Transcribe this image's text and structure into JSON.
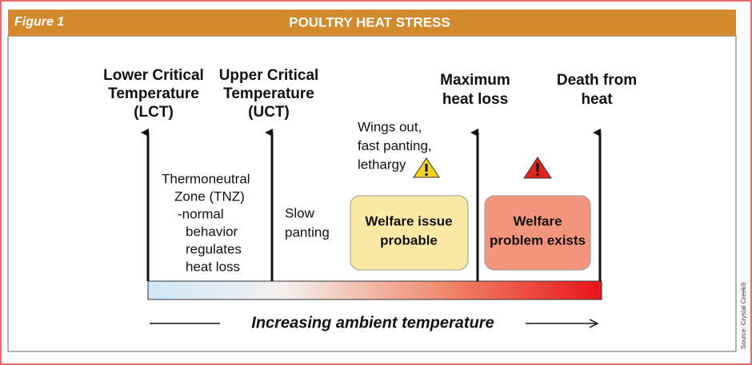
{
  "header": {
    "figure_label": "Figure 1",
    "title": "POULTRY HEAT STRESS"
  },
  "thresholds": [
    {
      "lines": [
        "Lower Critical",
        "Temperature",
        "(LCT)"
      ]
    },
    {
      "lines": [
        "Upper Critical",
        "Temperature",
        "(UCT)"
      ]
    },
    {
      "lines": [
        "Maximum",
        "heat loss"
      ]
    },
    {
      "lines": [
        "Death from",
        "heat"
      ]
    }
  ],
  "zones": [
    {
      "lines": [
        "Thermoneutral",
        "Zone (TNZ)",
        "-normal",
        "behavior",
        "regulates",
        "heat loss"
      ]
    },
    {
      "lines": [
        "Slow",
        "panting"
      ]
    },
    {
      "lines": [
        "Wings out,",
        "fast panting,",
        "lethargy"
      ]
    }
  ],
  "boxes": [
    {
      "lines": [
        "Welfare issue",
        "probable"
      ]
    },
    {
      "lines": [
        "Welfare",
        "problem exists"
      ]
    }
  ],
  "axis_label": "Increasing ambient temperature",
  "source": "Source: Crystal Creek®"
}
